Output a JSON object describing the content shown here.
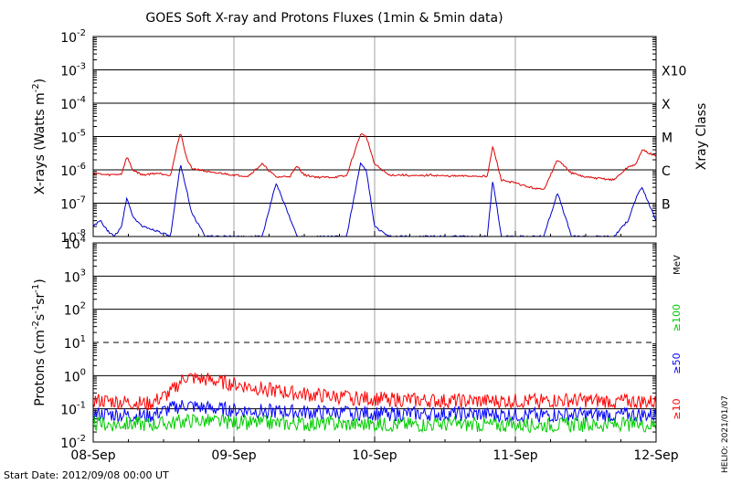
{
  "title": "GOES Soft X-ray and Protons Fluxes   (1min & 5min data)",
  "start_date_label": "Start Date: 2012/09/08 00:00 UT",
  "credit_label": "HELIO: 2021/01/07",
  "colors": {
    "xray_long": "#dd0000",
    "xray_short": "#0000cc",
    "proton_10": "#ff0000",
    "proton_50": "#0000ff",
    "proton_100": "#00cc00",
    "grid": "#000000",
    "day_line": "#a0a0a0"
  },
  "chart_data": [
    {
      "type": "line",
      "panel": "xray",
      "ylabel": "X-rays (Watts m",
      "ylabel_sup": "-2",
      "ylabel_end": ")",
      "y_scale": "log",
      "ylim": [
        1e-08,
        0.01
      ],
      "y_ticks": [
        {
          "base": "10",
          "exp": "-8"
        },
        {
          "base": "10",
          "exp": "-7"
        },
        {
          "base": "10",
          "exp": "-6"
        },
        {
          "base": "10",
          "exp": "-5"
        },
        {
          "base": "10",
          "exp": "-4"
        },
        {
          "base": "10",
          "exp": "-3"
        },
        {
          "base": "10",
          "exp": "-2"
        }
      ],
      "right_axis_label": "Xray Class",
      "class_labels": [
        {
          "label": "B",
          "value": 1e-07
        },
        {
          "label": "C",
          "value": 1e-06
        },
        {
          "label": "M",
          "value": 1e-05
        },
        {
          "label": "X",
          "value": 0.0001
        },
        {
          "label": "X10",
          "value": 0.001
        }
      ],
      "x_unit": "days since 2012-09-08 00:00 UT",
      "series": [
        {
          "name": "long",
          "color": "#dd0000",
          "x": [
            0,
            0.1,
            0.2,
            0.24,
            0.28,
            0.35,
            0.45,
            0.55,
            0.62,
            0.66,
            0.7,
            0.76,
            0.8,
            0.85,
            0.9,
            1.0,
            1.1,
            1.2,
            1.3,
            1.4,
            1.45,
            1.5,
            1.6,
            1.7,
            1.8,
            1.9,
            1.94,
            2.0,
            2.1,
            2.2,
            2.3,
            2.4,
            2.5,
            2.6,
            2.7,
            2.8,
            2.84,
            2.9,
            3.0,
            3.1,
            3.2,
            3.3,
            3.4,
            3.5,
            3.6,
            3.7,
            3.8,
            3.86,
            3.9,
            4.0
          ],
          "y": [
            8e-07,
            7e-07,
            7.5e-07,
            2.5e-06,
            1e-06,
            7e-07,
            8e-07,
            7e-07,
            1.4e-05,
            2.5e-06,
            1.1e-06,
            1e-06,
            9e-07,
            8e-07,
            8e-07,
            7e-07,
            6.5e-07,
            1.5e-06,
            6e-07,
            6.5e-07,
            1.3e-06,
            7e-07,
            6e-07,
            6e-07,
            6.5e-07,
            1.2e-05,
            1e-05,
            1.5e-06,
            7e-07,
            7e-07,
            6.5e-07,
            7e-07,
            6.5e-07,
            6.5e-07,
            6.5e-07,
            6.5e-07,
            5e-06,
            5e-07,
            4e-07,
            3e-07,
            2.5e-07,
            2e-06,
            8e-07,
            6e-07,
            5.5e-07,
            5e-07,
            1.2e-06,
            1.5e-06,
            4e-06,
            2.5e-06
          ]
        },
        {
          "name": "short",
          "color": "#0000cc",
          "x": [
            0,
            0.05,
            0.1,
            0.15,
            0.2,
            0.24,
            0.28,
            0.35,
            0.45,
            0.55,
            0.62,
            0.66,
            0.7,
            0.8,
            1.0,
            1.2,
            1.3,
            1.45,
            1.6,
            1.8,
            1.9,
            1.94,
            2.0,
            2.1,
            2.2,
            2.4,
            2.6,
            2.8,
            2.84,
            2.9,
            3.0,
            3.2,
            3.3,
            3.4,
            3.5,
            3.6,
            3.7,
            3.8,
            3.86,
            3.9,
            4.0
          ],
          "y": [
            2e-08,
            3e-08,
            1.5e-08,
            1e-08,
            2e-08,
            1.5e-07,
            4e-08,
            2e-08,
            1.5e-08,
            1e-08,
            1.5e-06,
            3e-07,
            5e-08,
            1e-08,
            1e-08,
            1e-08,
            4e-07,
            1e-08,
            1e-08,
            1e-08,
            1.5e-06,
            1e-06,
            2e-08,
            1e-08,
            1e-08,
            1e-08,
            1e-08,
            1e-08,
            5e-07,
            1e-08,
            1e-08,
            1e-08,
            2e-07,
            1e-08,
            1e-08,
            1e-08,
            1e-08,
            3e-08,
            1.5e-07,
            3e-07,
            3e-08
          ]
        }
      ]
    },
    {
      "type": "line",
      "panel": "protons",
      "ylabel": "Protons (cm",
      "ylabel_sup1": "-2",
      "ylabel_mid": "s",
      "ylabel_sup2": "-1",
      "ylabel_mid2": "sr",
      "ylabel_sup3": "-1",
      "ylabel_end": ")",
      "y_scale": "log",
      "ylim": [
        0.01,
        10000
      ],
      "y_ticks": [
        {
          "base": "10",
          "exp": "-2"
        },
        {
          "base": "10",
          "exp": "-1"
        },
        {
          "base": "10",
          "exp": "0"
        },
        {
          "base": "10",
          "exp": "1"
        },
        {
          "base": "10",
          "exp": "2"
        },
        {
          "base": "10",
          "exp": "3"
        },
        {
          "base": "10",
          "exp": "4"
        }
      ],
      "threshold": {
        "value": 10,
        "style": "dashed"
      },
      "energy_unit_label": "MeV",
      "x_unit": "days since 2012-09-08 00:00 UT",
      "series": [
        {
          "name": "≥10",
          "color": "#ff0000",
          "x": [
            0,
            0.2,
            0.4,
            0.55,
            0.65,
            0.75,
            0.85,
            1.0,
            1.2,
            1.4,
            1.6,
            1.8,
            2.0,
            2.3,
            2.6,
            3.0,
            3.4,
            3.7,
            4.0
          ],
          "y": [
            0.18,
            0.16,
            0.14,
            0.3,
            0.9,
            0.8,
            0.7,
            0.55,
            0.4,
            0.3,
            0.25,
            0.22,
            0.2,
            0.18,
            0.17,
            0.17,
            0.18,
            0.17,
            0.16
          ]
        },
        {
          "name": "≥50",
          "color": "#0000ff",
          "x": [
            0,
            0.4,
            0.55,
            0.65,
            0.75,
            0.85,
            1.0,
            1.4,
            1.8,
            2.2,
            2.6,
            3.0,
            3.4,
            4.0
          ],
          "y": [
            0.07,
            0.06,
            0.1,
            0.13,
            0.11,
            0.1,
            0.09,
            0.08,
            0.075,
            0.07,
            0.07,
            0.065,
            0.065,
            0.065
          ]
        },
        {
          "name": "≥100",
          "color": "#00cc00",
          "x": [
            0,
            0.5,
            0.7,
            0.9,
            1.2,
            1.6,
            2.0,
            2.5,
            3.0,
            3.5,
            4.0
          ],
          "y": [
            0.035,
            0.035,
            0.045,
            0.04,
            0.037,
            0.035,
            0.034,
            0.034,
            0.033,
            0.033,
            0.033
          ]
        }
      ]
    }
  ],
  "x_axis": {
    "xlim": [
      0,
      4
    ],
    "ticks": [
      {
        "value": 0,
        "label": "08-Sep"
      },
      {
        "value": 1,
        "label": "09-Sep"
      },
      {
        "value": 2,
        "label": "10-Sep"
      },
      {
        "value": 3,
        "label": "11-Sep"
      },
      {
        "value": 4,
        "label": "12-Sep"
      }
    ]
  }
}
